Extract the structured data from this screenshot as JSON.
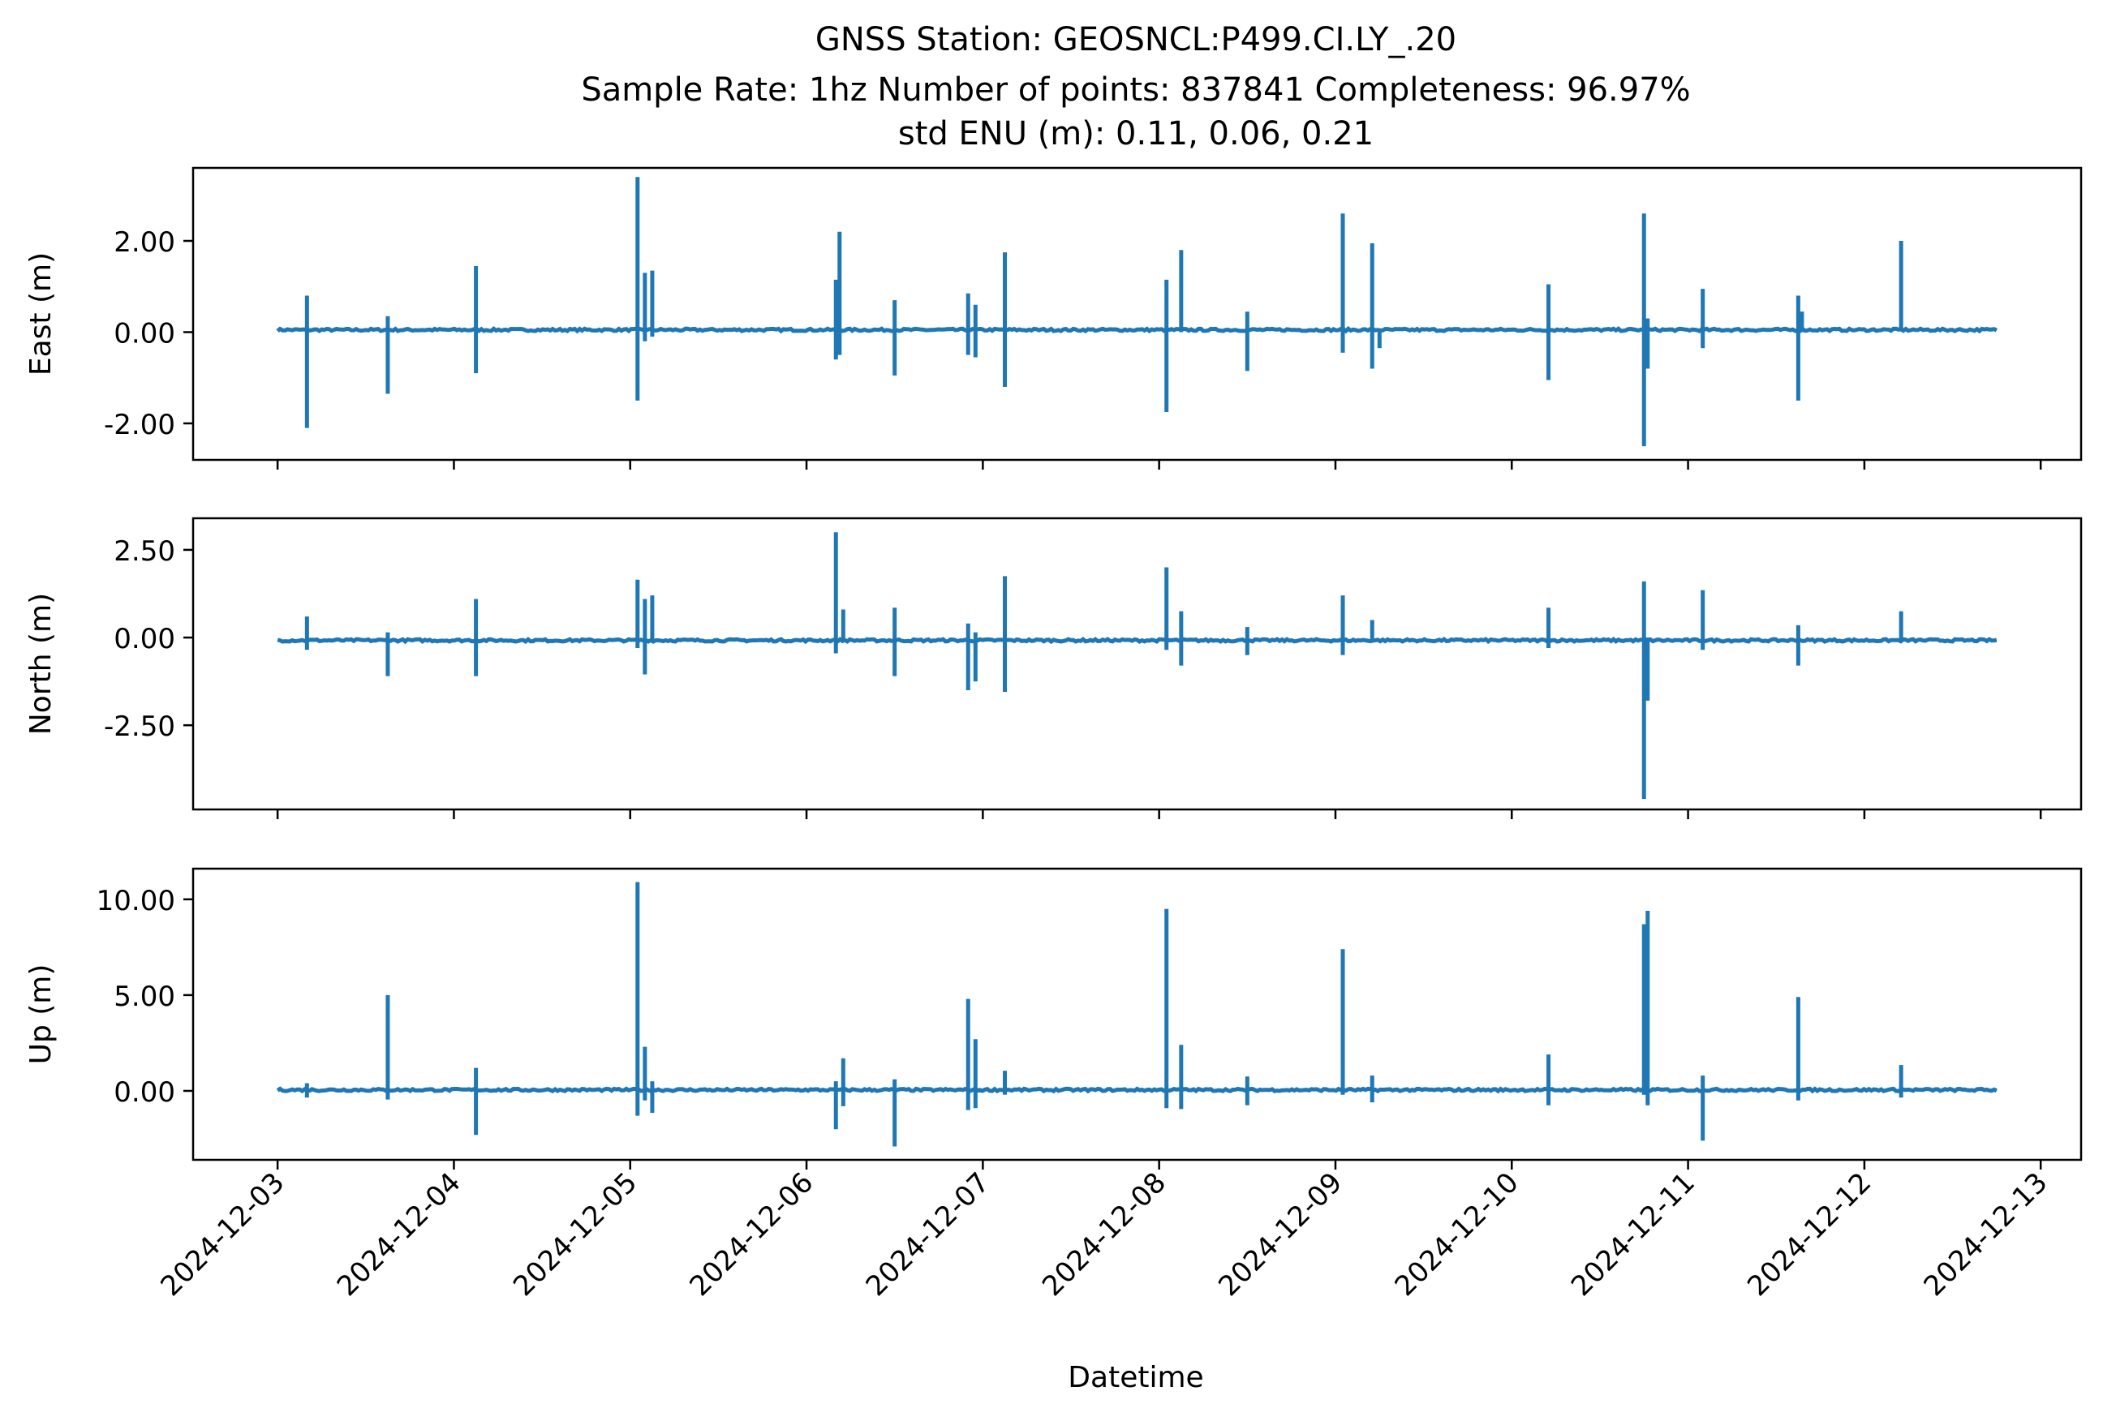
{
  "chart_data": {
    "type": "line",
    "title_lines": [
      "GNSS Station: GEOSNCL:P499.CI.LY_.20",
      "Sample Rate: 1hz   Number of points: 837841    Completeness:  96.97%",
      "std ENU (m):  0.11, 0.06, 0.21"
    ],
    "xlabel": "Datetime",
    "x_range": [
      "2024-12-02T12:30",
      "2024-12-13T05:30"
    ],
    "x_ticks": [
      "2024-12-03",
      "2024-12-04",
      "2024-12-05",
      "2024-12-06",
      "2024-12-07",
      "2024-12-08",
      "2024-12-09",
      "2024-12-10",
      "2024-12-11",
      "2024-12-12",
      "2024-12-13"
    ],
    "line_color": "#1f77b4",
    "data_start": "2024-12-03T00:00",
    "data_end": "2024-12-12T18:00",
    "panels": [
      {
        "ylabel": "East (m)",
        "ylim": [
          -2.8,
          3.6
        ],
        "yticks": [
          2.0,
          0.0,
          -2.0
        ],
        "ytick_labels": [
          "2.00",
          "0.00",
          "-2.00"
        ],
        "baseline": 0.05,
        "spikes": [
          {
            "t": "2024-12-03T04:00",
            "min": -2.1,
            "max": 0.8
          },
          {
            "t": "2024-12-03T15:00",
            "min": -1.35,
            "max": 0.35
          },
          {
            "t": "2024-12-04T03:00",
            "min": -0.9,
            "max": 1.45
          },
          {
            "t": "2024-12-05T01:00",
            "min": -1.5,
            "max": 3.4
          },
          {
            "t": "2024-12-05T02:00",
            "min": -0.2,
            "max": 1.3
          },
          {
            "t": "2024-12-05T03:00",
            "min": -0.1,
            "max": 1.35
          },
          {
            "t": "2024-12-06T04:00",
            "min": -0.6,
            "max": 1.15
          },
          {
            "t": "2024-12-06T04:30",
            "min": -0.5,
            "max": 2.2
          },
          {
            "t": "2024-12-06T12:00",
            "min": -0.95,
            "max": 0.7
          },
          {
            "t": "2024-12-06T22:00",
            "min": -0.5,
            "max": 0.85
          },
          {
            "t": "2024-12-06T23:00",
            "min": -0.55,
            "max": 0.6
          },
          {
            "t": "2024-12-07T03:00",
            "min": -1.2,
            "max": 1.75
          },
          {
            "t": "2024-12-08T01:00",
            "min": -1.75,
            "max": 1.15
          },
          {
            "t": "2024-12-08T03:00",
            "min": 0.0,
            "max": 1.8
          },
          {
            "t": "2024-12-08T12:00",
            "min": -0.85,
            "max": 0.45
          },
          {
            "t": "2024-12-09T01:00",
            "min": -0.45,
            "max": 2.6
          },
          {
            "t": "2024-12-09T05:00",
            "min": -0.8,
            "max": 1.95
          },
          {
            "t": "2024-12-09T06:00",
            "min": -0.35,
            "max": 0.0
          },
          {
            "t": "2024-12-10T05:00",
            "min": -1.05,
            "max": 1.05
          },
          {
            "t": "2024-12-10T18:00",
            "min": -2.5,
            "max": 2.6
          },
          {
            "t": "2024-12-10T18:30",
            "min": -0.8,
            "max": 0.3
          },
          {
            "t": "2024-12-11T02:00",
            "min": -0.35,
            "max": 0.95
          },
          {
            "t": "2024-12-11T15:00",
            "min": -1.5,
            "max": 0.8
          },
          {
            "t": "2024-12-11T15:30",
            "min": 0.0,
            "max": 0.45
          },
          {
            "t": "2024-12-12T05:00",
            "min": 0.05,
            "max": 2.0
          }
        ]
      },
      {
        "ylabel": "North (m)",
        "ylim": [
          -4.9,
          3.4
        ],
        "yticks": [
          2.5,
          0.0,
          -2.5
        ],
        "ytick_labels": [
          "2.50",
          "0.00",
          "-2.50"
        ],
        "baseline": -0.08,
        "spikes": [
          {
            "t": "2024-12-03T04:00",
            "min": -0.35,
            "max": 0.6
          },
          {
            "t": "2024-12-03T15:00",
            "min": -1.1,
            "max": 0.15
          },
          {
            "t": "2024-12-04T03:00",
            "min": -1.1,
            "max": 1.1
          },
          {
            "t": "2024-12-05T01:00",
            "min": -0.3,
            "max": 1.65
          },
          {
            "t": "2024-12-05T02:00",
            "min": -1.05,
            "max": 1.1
          },
          {
            "t": "2024-12-05T03:00",
            "min": -0.1,
            "max": 1.2
          },
          {
            "t": "2024-12-06T04:00",
            "min": -0.45,
            "max": 3.0
          },
          {
            "t": "2024-12-06T05:00",
            "min": -0.1,
            "max": 0.8
          },
          {
            "t": "2024-12-06T12:00",
            "min": -1.1,
            "max": 0.85
          },
          {
            "t": "2024-12-06T22:00",
            "min": -1.5,
            "max": 0.4
          },
          {
            "t": "2024-12-06T23:00",
            "min": -1.25,
            "max": 0.15
          },
          {
            "t": "2024-12-07T03:00",
            "min": -1.55,
            "max": 1.75
          },
          {
            "t": "2024-12-08T01:00",
            "min": -0.35,
            "max": 2.0
          },
          {
            "t": "2024-12-08T03:00",
            "min": -0.8,
            "max": 0.75
          },
          {
            "t": "2024-12-08T12:00",
            "min": -0.5,
            "max": 0.3
          },
          {
            "t": "2024-12-09T01:00",
            "min": -0.5,
            "max": 1.2
          },
          {
            "t": "2024-12-09T05:00",
            "min": -0.1,
            "max": 0.5
          },
          {
            "t": "2024-12-10T05:00",
            "min": -0.3,
            "max": 0.85
          },
          {
            "t": "2024-12-10T18:00",
            "min": -4.6,
            "max": 1.6
          },
          {
            "t": "2024-12-10T18:30",
            "min": -1.8,
            "max": 0.0
          },
          {
            "t": "2024-12-11T02:00",
            "min": -0.35,
            "max": 1.35
          },
          {
            "t": "2024-12-11T15:00",
            "min": -0.8,
            "max": 0.35
          },
          {
            "t": "2024-12-12T05:00",
            "min": -0.1,
            "max": 0.75
          }
        ]
      },
      {
        "ylabel": "Up (m)",
        "ylim": [
          -3.6,
          11.6
        ],
        "yticks": [
          10.0,
          5.0,
          0.0
        ],
        "ytick_labels": [
          "10.00",
          "5.00",
          "0.00"
        ],
        "baseline": 0.05,
        "spikes": [
          {
            "t": "2024-12-03T04:00",
            "min": -0.35,
            "max": 0.4
          },
          {
            "t": "2024-12-03T15:00",
            "min": -0.45,
            "max": 5.0
          },
          {
            "t": "2024-12-04T03:00",
            "min": -2.3,
            "max": 1.2
          },
          {
            "t": "2024-12-05T01:00",
            "min": -1.3,
            "max": 10.9
          },
          {
            "t": "2024-12-05T02:00",
            "min": -0.5,
            "max": 2.3
          },
          {
            "t": "2024-12-05T03:00",
            "min": -1.15,
            "max": 0.5
          },
          {
            "t": "2024-12-06T04:00",
            "min": -2.0,
            "max": 0.5
          },
          {
            "t": "2024-12-06T05:00",
            "min": -0.8,
            "max": 1.7
          },
          {
            "t": "2024-12-06T12:00",
            "min": -2.9,
            "max": 0.6
          },
          {
            "t": "2024-12-06T22:00",
            "min": -1.0,
            "max": 4.8
          },
          {
            "t": "2024-12-06T23:00",
            "min": -0.9,
            "max": 2.7
          },
          {
            "t": "2024-12-07T03:00",
            "min": -0.2,
            "max": 1.05
          },
          {
            "t": "2024-12-08T01:00",
            "min": -0.9,
            "max": 9.5
          },
          {
            "t": "2024-12-08T03:00",
            "min": -0.95,
            "max": 2.4
          },
          {
            "t": "2024-12-08T12:00",
            "min": -0.75,
            "max": 0.75
          },
          {
            "t": "2024-12-09T01:00",
            "min": -0.2,
            "max": 7.4
          },
          {
            "t": "2024-12-09T05:00",
            "min": -0.6,
            "max": 0.8
          },
          {
            "t": "2024-12-10T05:00",
            "min": -0.75,
            "max": 1.9
          },
          {
            "t": "2024-12-10T18:00",
            "min": -0.2,
            "max": 8.7
          },
          {
            "t": "2024-12-10T18:30",
            "min": -0.75,
            "max": 9.4
          },
          {
            "t": "2024-12-11T02:00",
            "min": -2.6,
            "max": 0.8
          },
          {
            "t": "2024-12-11T15:00",
            "min": -0.5,
            "max": 4.9
          },
          {
            "t": "2024-12-12T05:00",
            "min": -0.35,
            "max": 1.35
          }
        ]
      }
    ]
  }
}
